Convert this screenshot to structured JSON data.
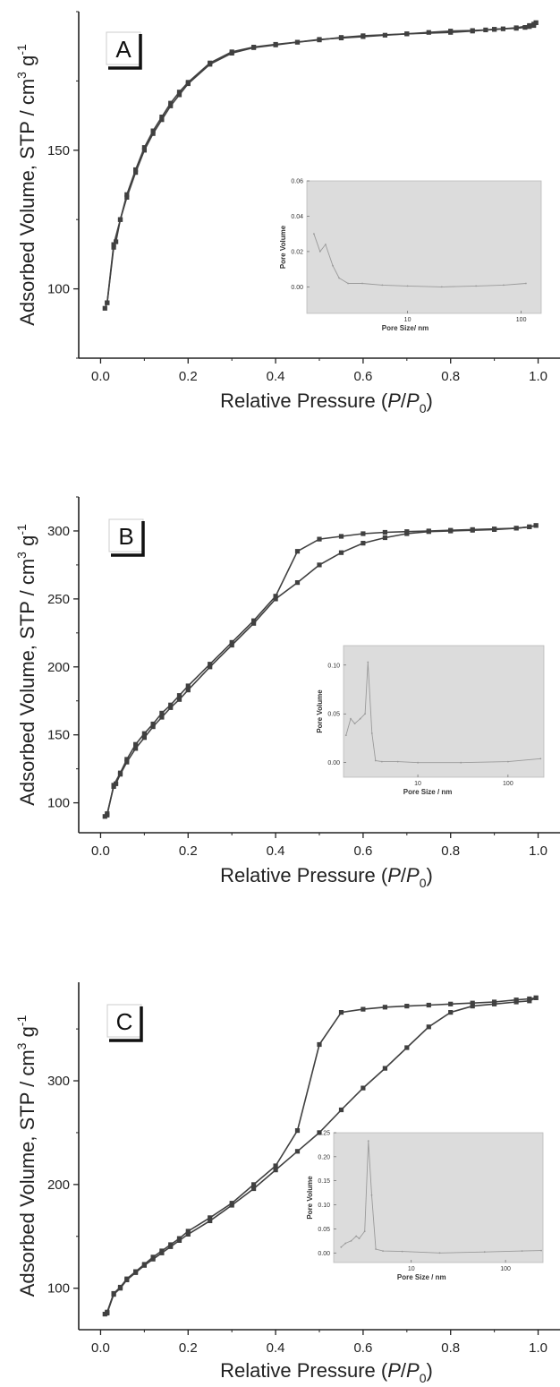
{
  "figure": {
    "colors": {
      "series": "#404040",
      "axes": "#222222",
      "inset_bg": "#dcdcdc",
      "inset_line": "#9a9a9a"
    }
  },
  "chart_data": [
    {
      "type": "line",
      "panel_label": "A",
      "xlabel": "Relative Pressure (P/P0)",
      "ylabel": "Adsorbed Volume, STP / cm3 g-1",
      "xlim": [
        -0.05,
        1.05
      ],
      "ylim": [
        75,
        200
      ],
      "xticks": [
        "0.0",
        "0.2",
        "0.4",
        "0.6",
        "0.8",
        "1.0"
      ],
      "yticks": [
        100,
        150
      ],
      "grid": false,
      "series": [
        {
          "x": [
            0.01,
            0.015,
            0.03,
            0.035,
            0.045,
            0.06,
            0.08,
            0.1,
            0.12,
            0.14,
            0.16,
            0.18,
            0.2,
            0.25,
            0.3,
            0.35,
            0.4,
            0.45,
            0.5,
            0.55,
            0.6,
            0.65,
            0.7,
            0.75,
            0.8,
            0.85,
            0.88,
            0.9,
            0.92,
            0.95,
            0.97,
            0.98,
            0.99,
            0.995
          ],
          "y": [
            93,
            95,
            115,
            117,
            125,
            133,
            142,
            150,
            156,
            161,
            166,
            170,
            174,
            181,
            185,
            187,
            188,
            189,
            190,
            190.5,
            191,
            191.5,
            192,
            192.5,
            193,
            193.2,
            193.4,
            193.6,
            193.8,
            194,
            194.3,
            194.6,
            195,
            196
          ]
        },
        {
          "x": [
            0.995,
            0.99,
            0.98,
            0.95,
            0.9,
            0.85,
            0.8,
            0.7,
            0.6,
            0.55,
            0.5,
            0.45,
            0.4,
            0.35,
            0.3,
            0.25,
            0.2,
            0.18,
            0.16,
            0.14,
            0.12,
            0.1,
            0.08,
            0.06,
            0.045,
            0.03,
            0.015
          ],
          "y": [
            196,
            195.5,
            195,
            194.2,
            193.6,
            193,
            192.5,
            192,
            191.3,
            190.7,
            189.8,
            189,
            188.2,
            187.2,
            185.5,
            181.5,
            174.5,
            171,
            167,
            162,
            157,
            151,
            143,
            134,
            125,
            116,
            95
          ]
        }
      ],
      "inset": {
        "xlabel": "Pore Size/ nm",
        "ylabel": "Pore Volume",
        "xlog": true,
        "xlim": [
          1.3,
          150
        ],
        "ylim": [
          -0.015,
          0.06
        ],
        "xtick_labels": [
          "10",
          "100"
        ],
        "ytick_labels": [
          "0.00",
          "0.02",
          "0.04",
          "0.06"
        ],
        "x": [
          1.5,
          1.7,
          1.9,
          2.2,
          2.5,
          3,
          4,
          6,
          10,
          20,
          40,
          70,
          110
        ],
        "y": [
          0.03,
          0.02,
          0.024,
          0.012,
          0.005,
          0.002,
          0.002,
          0.001,
          0.0005,
          0.0,
          0.0005,
          0.001,
          0.002
        ]
      }
    },
    {
      "type": "line",
      "panel_label": "B",
      "xlabel": "Relative Pressure (P/P0)",
      "ylabel": "Adsorbed Volume, STP / cm3 g-1",
      "xlim": [
        -0.05,
        1.05
      ],
      "ylim": [
        78,
        325
      ],
      "xticks": [
        "0.0",
        "0.2",
        "0.4",
        "0.6",
        "0.8",
        "1.0"
      ],
      "yticks": [
        100,
        150,
        200,
        250,
        300
      ],
      "grid": false,
      "series": [
        {
          "x": [
            0.01,
            0.015,
            0.03,
            0.035,
            0.045,
            0.06,
            0.08,
            0.1,
            0.12,
            0.14,
            0.16,
            0.18,
            0.2,
            0.25,
            0.3,
            0.35,
            0.4,
            0.45,
            0.5,
            0.55,
            0.6,
            0.65,
            0.7,
            0.75,
            0.8,
            0.85,
            0.9,
            0.95,
            0.98,
            0.995
          ],
          "y": [
            90,
            92,
            112,
            114,
            121,
            130,
            140,
            148,
            156,
            163,
            170,
            176,
            183,
            200,
            216,
            232,
            250,
            262,
            275,
            284,
            291,
            295,
            298,
            299.5,
            300,
            300.5,
            301,
            302,
            303,
            304
          ]
        },
        {
          "x": [
            0.995,
            0.98,
            0.95,
            0.9,
            0.85,
            0.8,
            0.75,
            0.7,
            0.65,
            0.6,
            0.55,
            0.5,
            0.45,
            0.4,
            0.35,
            0.3,
            0.25,
            0.2,
            0.18,
            0.16,
            0.14,
            0.12,
            0.1,
            0.08,
            0.06,
            0.045,
            0.03,
            0.015
          ],
          "y": [
            304,
            303,
            302,
            301.5,
            301,
            300.5,
            300,
            299.5,
            299,
            298,
            296,
            294,
            285,
            252,
            234,
            218,
            202,
            186,
            179,
            172,
            166,
            158,
            151,
            143,
            132,
            122,
            113,
            91
          ]
        }
      ],
      "inset": {
        "xlabel": "Pore Size / nm",
        "ylabel": "Pore Volume",
        "xlog": true,
        "xlim": [
          1.5,
          250
        ],
        "ylim": [
          -0.015,
          0.12
        ],
        "xtick_labels": [
          "10",
          "100"
        ],
        "ytick_labels": [
          "0.00",
          "0.05",
          "0.10"
        ],
        "x": [
          1.6,
          1.8,
          2.0,
          2.3,
          2.6,
          2.8,
          3.1,
          3.4,
          4,
          6,
          10,
          30,
          100,
          230
        ],
        "y": [
          0.028,
          0.045,
          0.04,
          0.045,
          0.05,
          0.103,
          0.03,
          0.002,
          0.001,
          0.001,
          0.0,
          0.0,
          0.001,
          0.004
        ]
      }
    },
    {
      "type": "line",
      "panel_label": "C",
      "xlabel": "Relative Pressure (P/P0)",
      "ylabel": "Adsorbed Volume, STP / cm3 g-1",
      "xlim": [
        -0.05,
        1.05
      ],
      "ylim": [
        60,
        395
      ],
      "xticks": [
        "0.0",
        "0.2",
        "0.4",
        "0.6",
        "0.8",
        "1.0"
      ],
      "yticks": [
        100,
        200,
        300
      ],
      "grid": false,
      "series": [
        {
          "x": [
            0.01,
            0.015,
            0.03,
            0.045,
            0.06,
            0.08,
            0.1,
            0.12,
            0.14,
            0.16,
            0.18,
            0.2,
            0.25,
            0.3,
            0.35,
            0.4,
            0.45,
            0.5,
            0.55,
            0.6,
            0.65,
            0.7,
            0.75,
            0.8,
            0.85,
            0.9,
            0.95,
            0.98,
            0.995
          ],
          "y": [
            75,
            76,
            94,
            100,
            108,
            115,
            122,
            128,
            134,
            140,
            146,
            152,
            165,
            180,
            196,
            214,
            232,
            250,
            272,
            293,
            312,
            332,
            352,
            366,
            372,
            374,
            376,
            377,
            380
          ]
        },
        {
          "x": [
            0.995,
            0.98,
            0.95,
            0.9,
            0.85,
            0.8,
            0.75,
            0.7,
            0.65,
            0.6,
            0.55,
            0.5,
            0.45,
            0.4,
            0.35,
            0.3,
            0.25,
            0.2,
            0.18,
            0.16,
            0.14,
            0.12,
            0.1,
            0.08,
            0.06,
            0.045,
            0.03,
            0.015
          ],
          "y": [
            380,
            379,
            378,
            376,
            375,
            374,
            373,
            372,
            371,
            369,
            366,
            335,
            252,
            218,
            200,
            182,
            168,
            155,
            148,
            142,
            136,
            130,
            123,
            116,
            109,
            101,
            95,
            77
          ]
        }
      ],
      "inset": {
        "xlabel": "Pore Size / nm",
        "ylabel": "Pore Volume",
        "xlog": true,
        "xlim": [
          1.5,
          250
        ],
        "ylim": [
          -0.02,
          0.25
        ],
        "xtick_labels": [
          "10",
          "100"
        ],
        "ytick_labels": [
          "0.00",
          "0.05",
          "0.10",
          "0.15",
          "0.20",
          "0.25"
        ],
        "x": [
          1.8,
          2.0,
          2.3,
          2.6,
          2.8,
          3.2,
          3.5,
          3.8,
          4.2,
          5,
          8,
          20,
          60,
          150,
          240
        ],
        "y": [
          0.012,
          0.02,
          0.025,
          0.035,
          0.03,
          0.045,
          0.233,
          0.12,
          0.008,
          0.004,
          0.003,
          0.0,
          0.002,
          0.004,
          0.005
        ]
      }
    }
  ]
}
